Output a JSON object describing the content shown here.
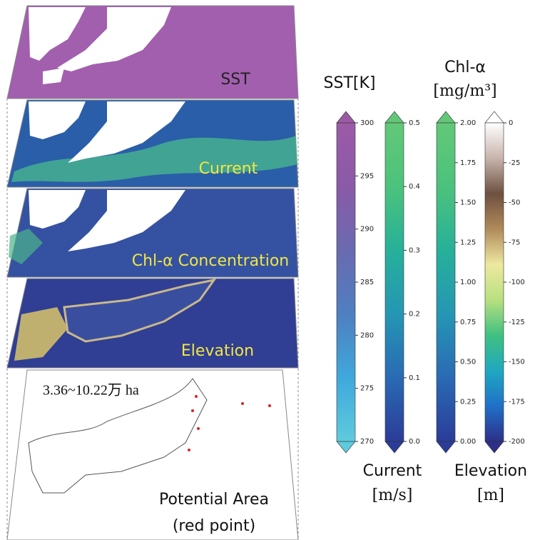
{
  "layers": [
    {
      "label": "SST"
    },
    {
      "label": "Current"
    },
    {
      "label": "Chl-α Concentration"
    },
    {
      "label": "Elevation"
    },
    {
      "label": [
        "Potential Area",
        "(red point)"
      ],
      "annotation": "3.36~10.22万 ha"
    }
  ],
  "colorbars": [
    {
      "title": [
        "SST[K]"
      ],
      "lim": [
        270,
        300
      ],
      "ticks": [
        270,
        275,
        280,
        285,
        290,
        295,
        300
      ],
      "colors": [
        "#5fcbdc",
        "#3fa8dc",
        "#4f7fc0",
        "#6a6ab0",
        "#8a5aa8",
        "#9c5aa6"
      ]
    },
    {
      "title": [
        "Current",
        "[m/s]"
      ],
      "lim": [
        0,
        0.5
      ],
      "ticks": [
        {
          "value": 0,
          "label": "0.0"
        },
        0.1,
        0.2,
        0.3,
        0.4,
        0.5
      ],
      "colors": [
        "#2b3c98",
        "#2a6ab4",
        "#2596b4",
        "#27b09a",
        "#4cc27c",
        "#62c878"
      ]
    },
    {
      "title": [
        "Chl-α",
        "[mg/m³]"
      ],
      "lim": [
        0,
        2
      ],
      "ticks": [
        {
          "value": 0,
          "label": "0.00"
        },
        0.25,
        {
          "value": 0.5,
          "label": "0.50"
        },
        0.75,
        {
          "value": 1,
          "label": "1.00"
        },
        1.25,
        {
          "value": 1.5,
          "label": "1.50"
        },
        1.75,
        {
          "value": 2,
          "label": "2.00"
        }
      ],
      "colors": [
        "#2b3c98",
        "#2a6ab4",
        "#2596b4",
        "#27b09a",
        "#4cc27c",
        "#62c878"
      ]
    },
    {
      "title": [
        "Elevation",
        "[m]"
      ],
      "lim": [
        -200,
        0
      ],
      "ticks": [
        -200,
        -175,
        -150,
        -125,
        -100,
        -75,
        -50,
        -25,
        0
      ],
      "colors": [
        "#2d2f88",
        "#2070c8",
        "#20a8c0",
        "#40c080",
        "#b8e080",
        "#eee8a0",
        "#b08a5a",
        "#6e5040",
        "#c8b4ac",
        "#ffffff"
      ]
    }
  ]
}
